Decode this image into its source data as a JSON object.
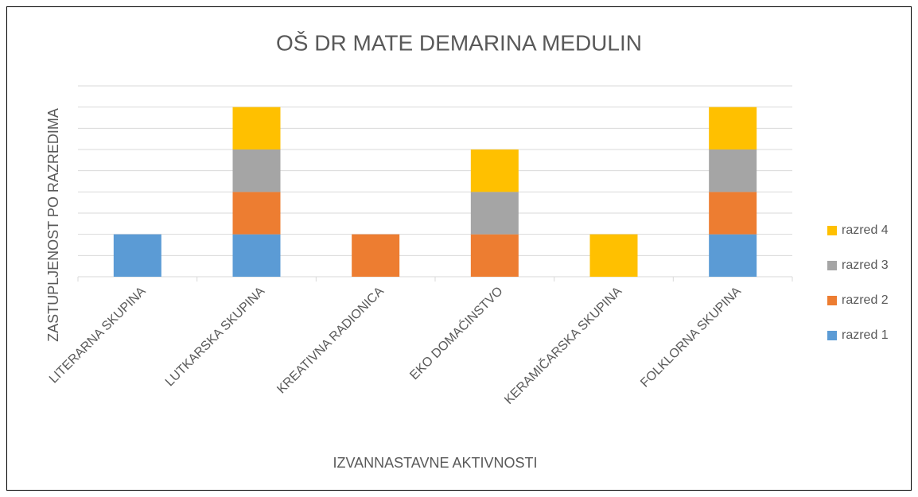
{
  "chart_data": {
    "type": "stacked_bar",
    "title": "OŠ DR MATE DEMARINA MEDULIN",
    "x_label": "IZVANNASTAVNE AKTIVNOSTI",
    "y_label": "ZASTUPLJENOST PO RAZREDIMA",
    "categories": [
      "LITERARNA SKUPINA",
      "LUTKARSKA SKUPINA",
      "KREATIVNA RADIONICA",
      "EKO DOMAĆINSTVO",
      "KERAMIČARSKA SKUPINA",
      "FOLKLORNA  SKUPINA"
    ],
    "series": [
      {
        "name": "razred 1",
        "color": "#5b9bd5",
        "values": [
          1,
          1,
          0,
          0,
          0,
          1
        ]
      },
      {
        "name": "razred 2",
        "color": "#ed7d31",
        "values": [
          0,
          1,
          1,
          1,
          0,
          1
        ]
      },
      {
        "name": "razred 3",
        "color": "#a5a5a5",
        "values": [
          0,
          1,
          0,
          1,
          0,
          1
        ]
      },
      {
        "name": "razred 4",
        "color": "#ffc000",
        "values": [
          0,
          1,
          0,
          1,
          1,
          1
        ]
      }
    ],
    "ylim": [
      0,
      4.5
    ],
    "yticks": [
      0,
      0.5,
      1,
      1.5,
      2,
      2.5,
      3,
      3.5,
      4,
      4.5
    ],
    "grid": true,
    "legend": "right"
  }
}
